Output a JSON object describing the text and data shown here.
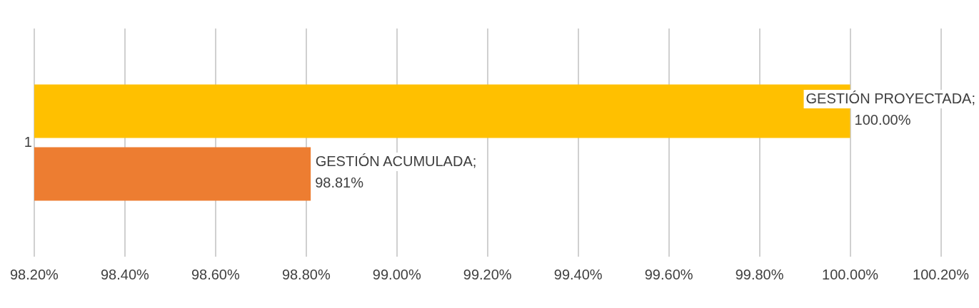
{
  "chart_data": {
    "type": "bar",
    "orientation": "horizontal",
    "categories": [
      "1"
    ],
    "series": [
      {
        "name": "GESTIÓN PROYECTADA;",
        "color": "#ffc000",
        "values": [
          100.0
        ],
        "value_labels": [
          "100.00%"
        ]
      },
      {
        "name": "GESTIÓN ACUMULADA;",
        "color": "#ed7d31",
        "values": [
          98.81
        ],
        "value_labels": [
          "98.81%"
        ]
      }
    ],
    "xlim": [
      98.2,
      100.2
    ],
    "xticks": [
      {
        "value": 98.2,
        "label": "98.20%"
      },
      {
        "value": 98.4,
        "label": "98.40%"
      },
      {
        "value": 98.6,
        "label": "98.60%"
      },
      {
        "value": 98.8,
        "label": "98.80%"
      },
      {
        "value": 99.0,
        "label": "99.00%"
      },
      {
        "value": 99.2,
        "label": "99.20%"
      },
      {
        "value": 99.4,
        "label": "99.40%"
      },
      {
        "value": 99.6,
        "label": "99.60%"
      },
      {
        "value": 99.8,
        "label": "99.80%"
      },
      {
        "value": 100.0,
        "label": "100.00%"
      },
      {
        "value": 100.2,
        "label": "100.20%"
      }
    ],
    "grid": "x",
    "legend": false
  }
}
